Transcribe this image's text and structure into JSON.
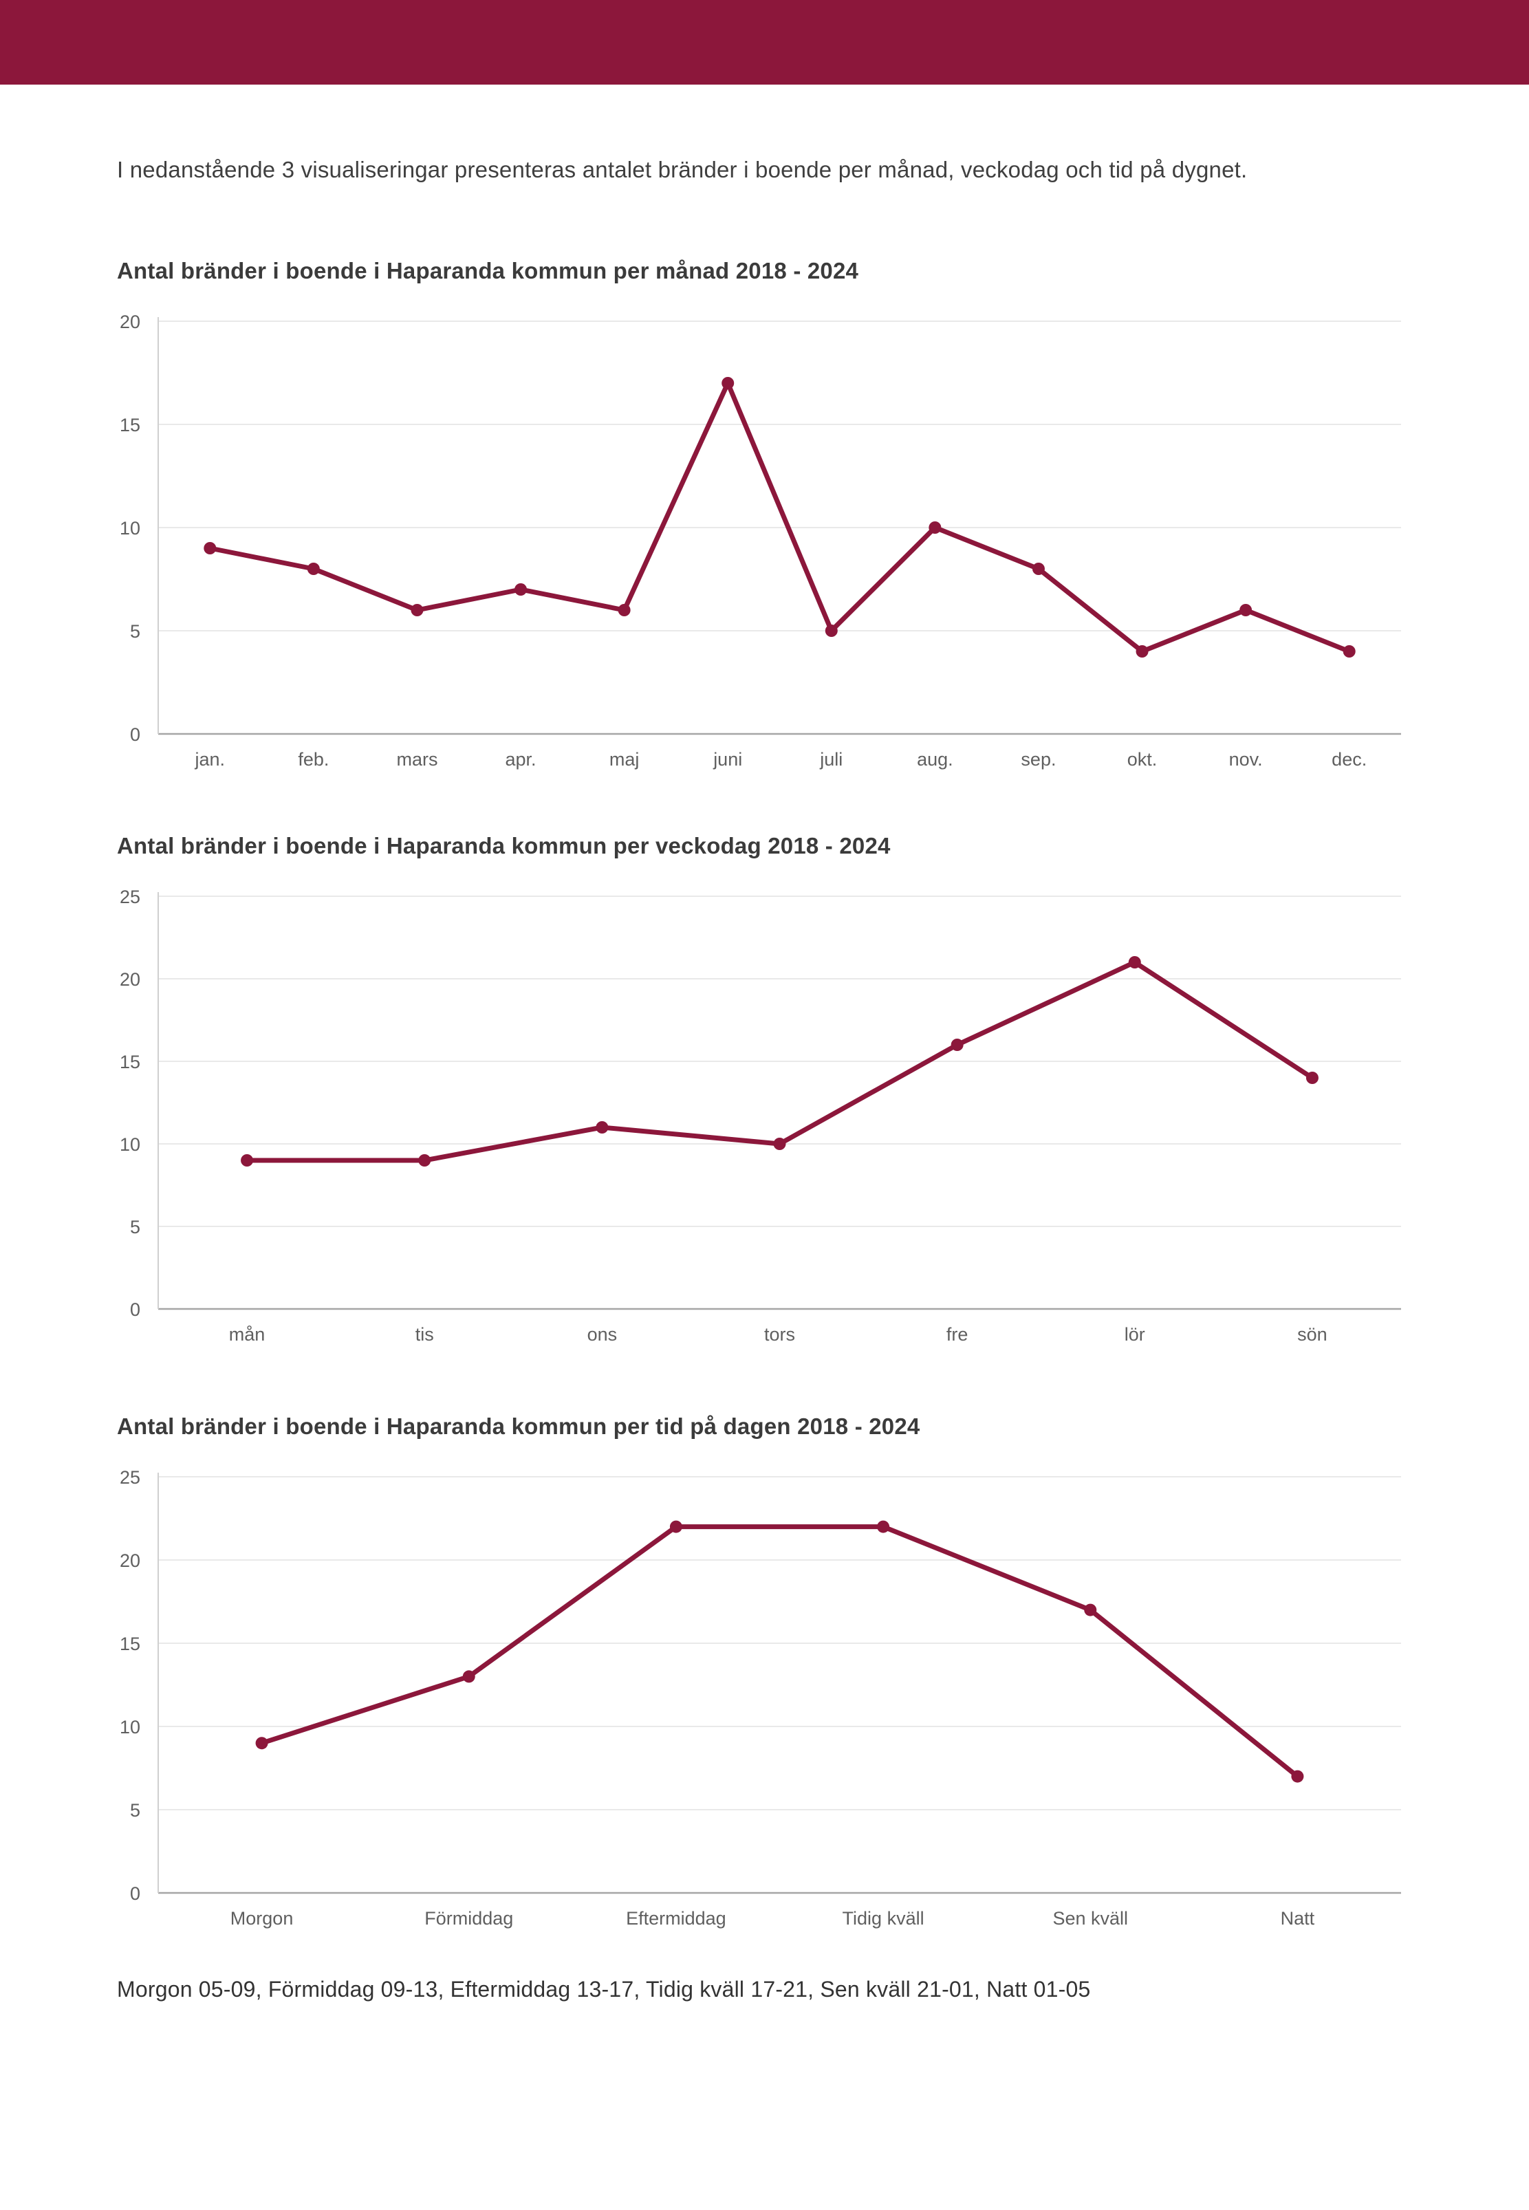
{
  "page": {
    "background": "#FFFFFF",
    "accent_color": "#8C173B"
  },
  "header": {
    "bar_color": "#8C173B"
  },
  "intro": "I nedanstående 3 visualiseringar presenteras antalet bränder i boende per månad, veckodag och tid på dygnet.",
  "footer": "Morgon 05-09, Förmiddag 09-13, Eftermiddag 13-17, Tidig kväll 17-21, Sen kväll 21-01, Natt 01-05",
  "chart_data": [
    {
      "type": "line",
      "title": "Antal bränder i boende i Haparanda kommun per månad 2018 - 2024",
      "categories": [
        "jan.",
        "feb.",
        "mars",
        "apr.",
        "maj",
        "juni",
        "juli",
        "aug.",
        "sep.",
        "okt.",
        "nov.",
        "dec."
      ],
      "values": [
        9,
        8,
        6,
        7,
        6,
        17,
        5,
        10,
        8,
        4,
        6,
        4
      ],
      "xlabel": "",
      "ylabel": "",
      "ylim": [
        0,
        20
      ],
      "yticks": [
        0,
        5,
        10,
        15,
        20
      ],
      "grid": true,
      "legend": "none",
      "line_color": "#8C173B",
      "marker": "circle"
    },
    {
      "type": "line",
      "title": "Antal bränder i boende i Haparanda kommun per veckodag 2018 - 2024",
      "categories": [
        "mån",
        "tis",
        "ons",
        "tors",
        "fre",
        "lör",
        "sön"
      ],
      "values": [
        9,
        9,
        11,
        10,
        16,
        21,
        14
      ],
      "xlabel": "",
      "ylabel": "",
      "ylim": [
        0,
        25
      ],
      "yticks": [
        0,
        5,
        10,
        15,
        20,
        25
      ],
      "grid": true,
      "legend": "none",
      "line_color": "#8C173B",
      "marker": "circle"
    },
    {
      "type": "line",
      "title": "Antal bränder i boende i Haparanda kommun per tid på dagen 2018 - 2024",
      "categories": [
        "Morgon",
        "Förmiddag",
        "Eftermiddag",
        "Tidig kväll",
        "Sen kväll",
        "Natt"
      ],
      "values": [
        9,
        13,
        22,
        22,
        17,
        7
      ],
      "xlabel": "",
      "ylabel": "",
      "ylim": [
        0,
        25
      ],
      "yticks": [
        0,
        5,
        10,
        15,
        20,
        25
      ],
      "grid": true,
      "legend": "none",
      "line_color": "#8C173B",
      "marker": "circle"
    }
  ],
  "style": {
    "gridline_color": "#E2E2E2",
    "zero_axis_color": "#A6A6A6",
    "y_axis_line_color": "#D0D0D0",
    "tick_label_color": "#5F5F5F"
  }
}
